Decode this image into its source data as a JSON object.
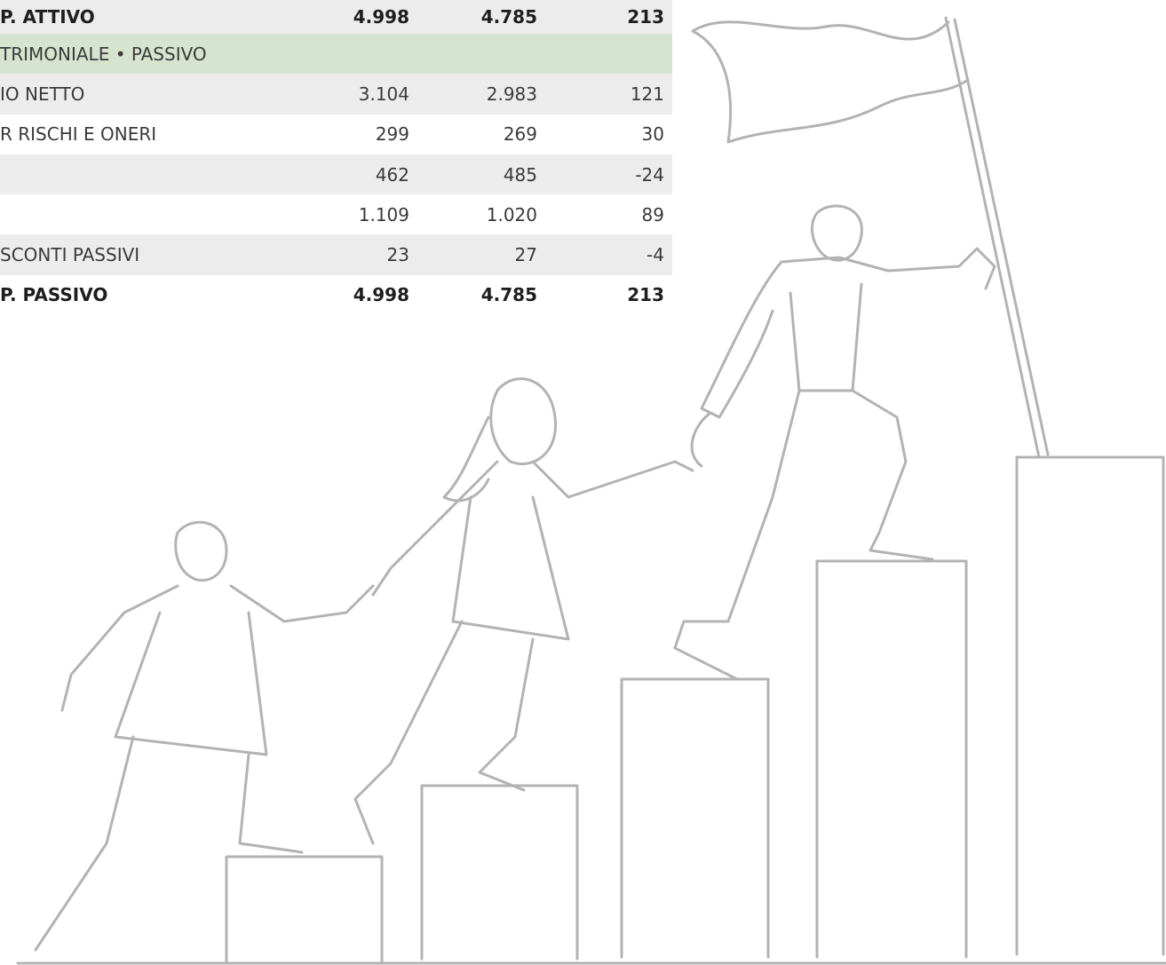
{
  "table": {
    "rows": [
      {
        "label": "P. ATTIVO",
        "cells": [
          "4.998",
          "4.785",
          "213"
        ],
        "style": "total",
        "shade": true
      },
      {
        "label": "TRIMONIALE • PASSIVO",
        "style": "section"
      },
      {
        "label": "IO NETTO",
        "cells": [
          "3.104",
          "2.983",
          "121"
        ],
        "shade": true
      },
      {
        "label": "R RISCHI E ONERI",
        "cells": [
          "299",
          "269",
          "30"
        ]
      },
      {
        "cells": [
          "462",
          "485",
          "-24"
        ],
        "shade": true
      },
      {
        "cells": [
          "1.109",
          "1.020",
          "89"
        ]
      },
      {
        "label": "SCONTI PASSIVI",
        "cells": [
          "23",
          "27",
          "-4"
        ],
        "shade": true
      },
      {
        "label": "P. PASSIVO",
        "cells": [
          "4.998",
          "4.785",
          "213"
        ],
        "style": "total"
      }
    ]
  }
}
